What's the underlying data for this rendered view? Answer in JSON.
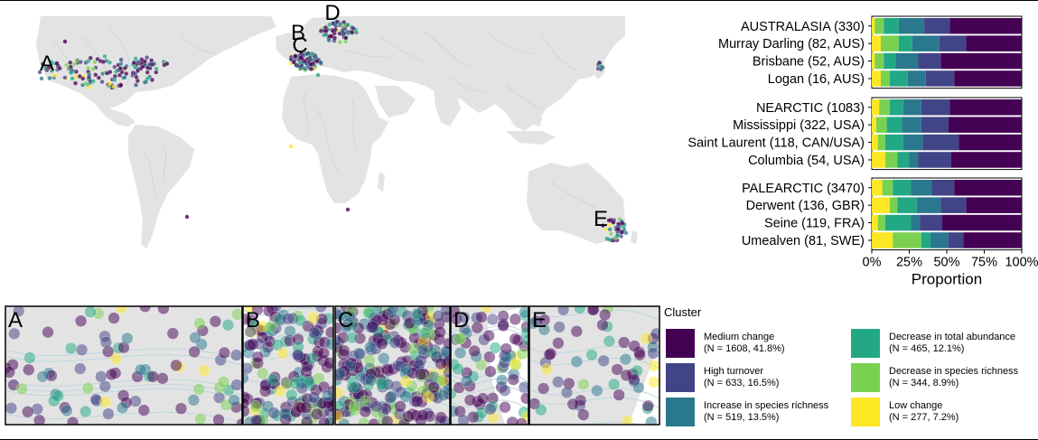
{
  "chart_data": [
    {
      "type": "map",
      "region_labels": [
        "A",
        "B",
        "C",
        "D",
        "E"
      ]
    },
    {
      "type": "bar",
      "orientation": "horizontal",
      "stacked": true,
      "xlabel": "Proportion",
      "xticks": [
        "0%",
        "25%",
        "50%",
        "75%",
        "100%"
      ],
      "xlim": [
        0,
        1
      ],
      "series_colors": [
        "#fde725",
        "#7ad151",
        "#22a884",
        "#2a788e",
        "#414487",
        "#440154"
      ],
      "groups": [
        {
          "rows": [
            {
              "label": "AUSTRALASIA (330)",
              "values": [
                0.02,
                0.06,
                0.1,
                0.17,
                0.17,
                0.48
              ]
            },
            {
              "label": "Murray Darling (82, AUS)",
              "values": [
                0.06,
                0.12,
                0.09,
                0.18,
                0.18,
                0.37
              ]
            },
            {
              "label": "Brisbane (52, AUS)",
              "values": [
                0.02,
                0.06,
                0.08,
                0.15,
                0.15,
                0.54
              ]
            },
            {
              "label": "Logan (16, AUS)",
              "values": [
                0.06,
                0.06,
                0.12,
                0.12,
                0.19,
                0.45
              ]
            }
          ]
        },
        {
          "rows": [
            {
              "label": "NEARCTIC (1083)",
              "values": [
                0.05,
                0.07,
                0.09,
                0.12,
                0.19,
                0.48
              ]
            },
            {
              "label": "Mississippi (322, USA)",
              "values": [
                0.03,
                0.07,
                0.1,
                0.13,
                0.18,
                0.49
              ]
            },
            {
              "label": "Saint Laurent (118, CAN/USA)",
              "values": [
                0.04,
                0.05,
                0.12,
                0.13,
                0.24,
                0.42
              ]
            },
            {
              "label": "Columbia (54, USA)",
              "values": [
                0.09,
                0.08,
                0.08,
                0.06,
                0.22,
                0.47
              ]
            }
          ]
        },
        {
          "rows": [
            {
              "label": "PALEARCTIC (3470)",
              "values": [
                0.07,
                0.07,
                0.12,
                0.14,
                0.15,
                0.45
              ]
            },
            {
              "label": "Derwent  (136, GBR)",
              "values": [
                0.12,
                0.05,
                0.13,
                0.16,
                0.17,
                0.37
              ]
            },
            {
              "label": "Seine (119, FRA)",
              "values": [
                0.04,
                0.05,
                0.17,
                0.06,
                0.15,
                0.53
              ]
            },
            {
              "label": "Umealven (81, SWE)",
              "values": [
                0.14,
                0.19,
                0.06,
                0.12,
                0.1,
                0.39
              ]
            }
          ]
        }
      ]
    },
    {
      "type": "scatter",
      "role": "inset_maps",
      "panels": [
        "A",
        "B",
        "C",
        "D",
        "E"
      ]
    }
  ],
  "legend": {
    "title": "Cluster",
    "items": [
      {
        "label": "Medium change",
        "n_label": "(N = 1608, 41.8%)",
        "color": "#440154"
      },
      {
        "label": "High turnover",
        "n_label": "(N = 633, 16.5%)",
        "color": "#414487"
      },
      {
        "label": "Increase in species richness",
        "n_label": "(N = 519, 13.5%)",
        "color": "#2a788e"
      },
      {
        "label": "Decrease in total abundance",
        "n_label": "(N = 465, 12.1%)",
        "color": "#22a884"
      },
      {
        "label": "Decrease in species richness",
        "n_label": "(N = 344, 8.9%)",
        "color": "#7ad151"
      },
      {
        "label": "Low change",
        "n_label": "(N = 277, 7.2%)",
        "color": "#fde725"
      }
    ]
  }
}
